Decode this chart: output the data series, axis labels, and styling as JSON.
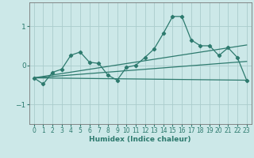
{
  "xlabel": "Humidex (Indice chaleur)",
  "xlim": [
    -0.5,
    23.5
  ],
  "ylim": [
    -1.5,
    1.6
  ],
  "yticks": [
    -1,
    0,
    1
  ],
  "xticks": [
    0,
    1,
    2,
    3,
    4,
    5,
    6,
    7,
    8,
    9,
    10,
    11,
    12,
    13,
    14,
    15,
    16,
    17,
    18,
    19,
    20,
    21,
    22,
    23
  ],
  "bg_color": "#cce8e8",
  "grid_color": "#aacccc",
  "line_color": "#2d7a6e",
  "line1_x": [
    0,
    1,
    2,
    3,
    4,
    5,
    6,
    7,
    8,
    9,
    10,
    11,
    12,
    13,
    14,
    15,
    16,
    17,
    18,
    19,
    20,
    21,
    22,
    23
  ],
  "line1_y": [
    -0.32,
    -0.48,
    -0.18,
    -0.1,
    0.26,
    0.34,
    0.08,
    0.05,
    -0.25,
    -0.38,
    -0.05,
    0.0,
    0.2,
    0.42,
    0.82,
    1.25,
    1.25,
    0.65,
    0.5,
    0.5,
    0.25,
    0.45,
    0.2,
    -0.38
  ],
  "trend1_x": [
    0,
    23
  ],
  "trend1_y": [
    -0.32,
    0.52
  ],
  "trend2_x": [
    0,
    23
  ],
  "trend2_y": [
    -0.32,
    0.1
  ],
  "trend3_x": [
    0,
    23
  ],
  "trend3_y": [
    -0.32,
    -0.38
  ]
}
